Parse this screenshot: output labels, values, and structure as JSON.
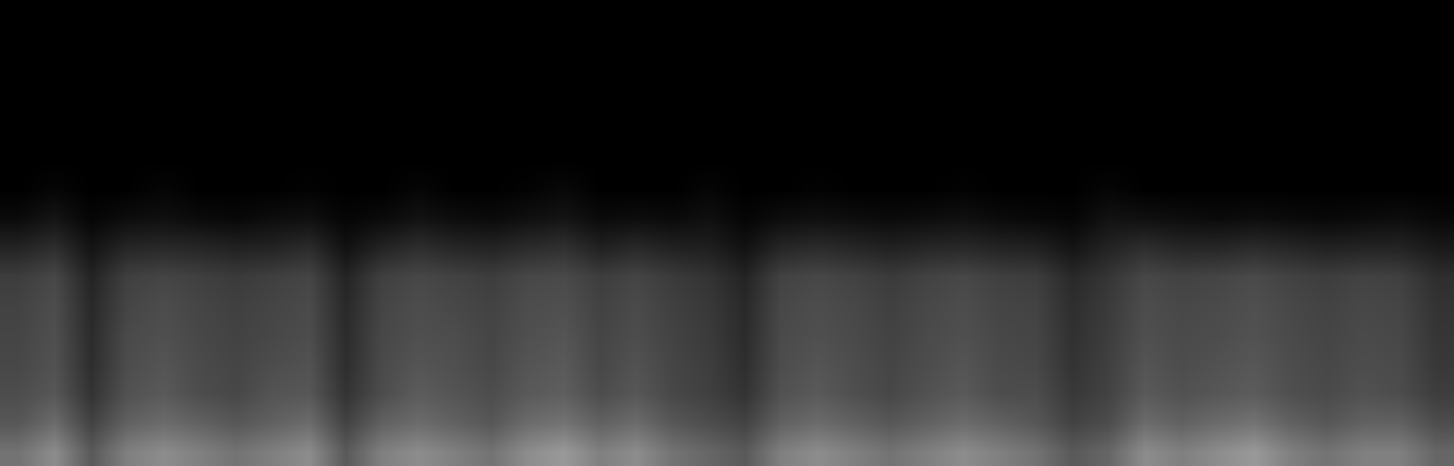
{
  "chart_data": {
    "type": "heatmap",
    "tick_labels": false,
    "zlim": [
      0,
      1
    ],
    "cells": [
      [
        0.45,
        0.55,
        0.35,
        0.5,
        0.55,
        0.5,
        0.45,
        0.5,
        0.55,
        0.35,
        0.5,
        0.55,
        0.5,
        0.45,
        0.55,
        0.6,
        0.5,
        0.55,
        0.45,
        0.4,
        0.35,
        0.5,
        0.55,
        0.5,
        0.45,
        0.5,
        0.55,
        0.5,
        0.45,
        0.35,
        0.4,
        0.55,
        0.5,
        0.55,
        0.6,
        0.5,
        0.45,
        0.5,
        0.5,
        0.4
      ],
      [
        0.34,
        0.42,
        0.26,
        0.38,
        0.42,
        0.38,
        0.34,
        0.38,
        0.42,
        0.26,
        0.38,
        0.42,
        0.38,
        0.34,
        0.42,
        0.45,
        0.38,
        0.42,
        0.34,
        0.3,
        0.26,
        0.38,
        0.42,
        0.38,
        0.34,
        0.38,
        0.42,
        0.38,
        0.34,
        0.26,
        0.3,
        0.42,
        0.38,
        0.42,
        0.45,
        0.38,
        0.34,
        0.38,
        0.38,
        0.3
      ],
      [
        0.3,
        0.34,
        0.2,
        0.32,
        0.35,
        0.3,
        0.28,
        0.33,
        0.34,
        0.2,
        0.3,
        0.36,
        0.33,
        0.3,
        0.35,
        0.37,
        0.3,
        0.34,
        0.28,
        0.25,
        0.2,
        0.32,
        0.35,
        0.31,
        0.28,
        0.32,
        0.35,
        0.3,
        0.3,
        0.22,
        0.26,
        0.35,
        0.32,
        0.34,
        0.36,
        0.31,
        0.29,
        0.32,
        0.3,
        0.24
      ],
      [
        0.28,
        0.32,
        0.18,
        0.3,
        0.33,
        0.29,
        0.27,
        0.3,
        0.32,
        0.18,
        0.29,
        0.33,
        0.31,
        0.28,
        0.33,
        0.35,
        0.28,
        0.32,
        0.27,
        0.24,
        0.18,
        0.3,
        0.33,
        0.3,
        0.27,
        0.3,
        0.33,
        0.29,
        0.28,
        0.2,
        0.25,
        0.33,
        0.3,
        0.32,
        0.34,
        0.3,
        0.28,
        0.3,
        0.29,
        0.22
      ],
      [
        0.27,
        0.31,
        0.17,
        0.29,
        0.31,
        0.28,
        0.26,
        0.28,
        0.3,
        0.17,
        0.28,
        0.31,
        0.3,
        0.27,
        0.31,
        0.33,
        0.27,
        0.3,
        0.26,
        0.23,
        0.17,
        0.29,
        0.31,
        0.29,
        0.26,
        0.29,
        0.31,
        0.28,
        0.27,
        0.19,
        0.24,
        0.31,
        0.29,
        0.3,
        0.32,
        0.29,
        0.27,
        0.29,
        0.28,
        0.21
      ],
      [
        0.26,
        0.3,
        0.16,
        0.27,
        0.3,
        0.27,
        0.25,
        0.27,
        0.29,
        0.16,
        0.27,
        0.3,
        0.28,
        0.26,
        0.3,
        0.31,
        0.26,
        0.29,
        0.25,
        0.22,
        0.16,
        0.28,
        0.3,
        0.28,
        0.25,
        0.28,
        0.3,
        0.27,
        0.26,
        0.18,
        0.23,
        0.3,
        0.28,
        0.29,
        0.31,
        0.28,
        0.26,
        0.28,
        0.27,
        0.2
      ],
      [
        0.24,
        0.28,
        0.14,
        0.25,
        0.27,
        0.25,
        0.23,
        0.25,
        0.27,
        0.14,
        0.25,
        0.28,
        0.26,
        0.24,
        0.28,
        0.29,
        0.24,
        0.27,
        0.23,
        0.2,
        0.14,
        0.26,
        0.28,
        0.26,
        0.23,
        0.26,
        0.28,
        0.25,
        0.24,
        0.16,
        0.21,
        0.28,
        0.26,
        0.27,
        0.29,
        0.26,
        0.24,
        0.26,
        0.25,
        0.18
      ],
      [
        0.14,
        0.18,
        0.08,
        0.15,
        0.16,
        0.15,
        0.13,
        0.14,
        0.17,
        0.07,
        0.14,
        0.18,
        0.15,
        0.14,
        0.17,
        0.19,
        0.13,
        0.16,
        0.13,
        0.12,
        0.07,
        0.15,
        0.17,
        0.15,
        0.13,
        0.15,
        0.16,
        0.14,
        0.13,
        0.08,
        0.14,
        0.18,
        0.15,
        0.15,
        0.17,
        0.15,
        0.13,
        0.14,
        0.14,
        0.1
      ],
      [
        0.04,
        0.08,
        0.02,
        0.05,
        0.06,
        0.04,
        0.03,
        0.05,
        0.06,
        0.02,
        0.04,
        0.07,
        0.05,
        0.04,
        0.06,
        0.08,
        0.04,
        0.05,
        0.04,
        0.06,
        0.02,
        0.05,
        0.06,
        0.05,
        0.04,
        0.05,
        0.06,
        0.04,
        0.03,
        0.02,
        0.07,
        0.06,
        0.05,
        0.04,
        0.05,
        0.04,
        0.03,
        0.04,
        0.05,
        0.03
      ],
      [
        0.0,
        0.02,
        0.0,
        0.0,
        0.02,
        0.0,
        0.0,
        0.0,
        0.01,
        0.0,
        0.0,
        0.02,
        0.0,
        0.0,
        0.01,
        0.03,
        0.0,
        0.0,
        0.0,
        0.02,
        0.0,
        0.0,
        0.01,
        0.0,
        0.0,
        0.0,
        0.01,
        0.0,
        0.0,
        0.0,
        0.02,
        0.0,
        0.0,
        0.0,
        0.0,
        0.0,
        0.0,
        0.0,
        0.0,
        0.0
      ],
      [
        0,
        0,
        0,
        0,
        0,
        0,
        0,
        0,
        0,
        0,
        0,
        0,
        0,
        0,
        0,
        0,
        0,
        0,
        0,
        0,
        0,
        0,
        0,
        0,
        0,
        0,
        0,
        0,
        0,
        0,
        0,
        0,
        0,
        0,
        0,
        0,
        0,
        0,
        0,
        0
      ],
      [
        0,
        0,
        0,
        0,
        0,
        0,
        0,
        0,
        0,
        0,
        0,
        0,
        0,
        0,
        0,
        0,
        0,
        0,
        0,
        0,
        0,
        0,
        0,
        0,
        0,
        0,
        0,
        0,
        0,
        0,
        0,
        0,
        0,
        0,
        0,
        0,
        0,
        0,
        0,
        0
      ],
      [
        0,
        0,
        0,
        0,
        0,
        0,
        0,
        0,
        0,
        0,
        0,
        0,
        0,
        0,
        0,
        0,
        0,
        0,
        0,
        0,
        0,
        0,
        0,
        0,
        0,
        0,
        0,
        0,
        0,
        0,
        0,
        0,
        0,
        0,
        0,
        0,
        0,
        0,
        0,
        0
      ],
      [
        0,
        0,
        0,
        0,
        0,
        0,
        0,
        0,
        0,
        0,
        0,
        0,
        0,
        0,
        0,
        0,
        0,
        0,
        0,
        0,
        0,
        0,
        0,
        0,
        0,
        0,
        0,
        0,
        0,
        0,
        0,
        0,
        0,
        0,
        0,
        0,
        0,
        0,
        0,
        0
      ],
      [
        0,
        0,
        0,
        0,
        0,
        0,
        0,
        0,
        0,
        0,
        0,
        0,
        0,
        0,
        0,
        0,
        0,
        0,
        0,
        0,
        0,
        0,
        0,
        0,
        0,
        0,
        0,
        0,
        0,
        0,
        0,
        0,
        0,
        0,
        0,
        0,
        0,
        0,
        0,
        0
      ],
      [
        0,
        0,
        0,
        0,
        0,
        0,
        0,
        0,
        0,
        0,
        0,
        0,
        0,
        0,
        0,
        0,
        0,
        0,
        0,
        0,
        0,
        0,
        0,
        0,
        0,
        0,
        0,
        0,
        0,
        0,
        0,
        0,
        0,
        0,
        0,
        0,
        0,
        0,
        0,
        0
      ]
    ]
  }
}
